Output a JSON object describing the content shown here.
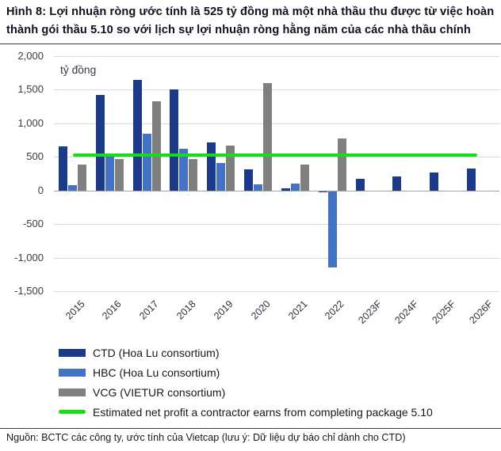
{
  "figure": {
    "title": "Hình 8: Lợi nhuận ròng ước tính là 525 tỷ đồng mà một nhà thầu thu được từ việc hoàn thành gói thầu 5.10 so với lịch sự lợi nhuận ròng hằng năm của các nhà thầu chính",
    "source_note": "Nguồn: BCTC các công ty, ước tính của Vietcap (lưu ý: Dữ liệu dự báo chỉ dành cho CTD)"
  },
  "chart_data": {
    "type": "bar",
    "unit_label": "tỷ đồng",
    "categories": [
      "2015",
      "2016",
      "2017",
      "2018",
      "2019",
      "2020",
      "2021",
      "2022",
      "2023F",
      "2024F",
      "2025F",
      "2026F"
    ],
    "series": [
      {
        "name": "CTD (Hoa Lu consortium)",
        "color": "#1b3a8a",
        "values": [
          660,
          1420,
          1650,
          1510,
          710,
          320,
          35,
          -20,
          170,
          210,
          270,
          330
        ]
      },
      {
        "name": "HBC (Hoa Lu consortium)",
        "color": "#4472c4",
        "values": [
          80,
          550,
          850,
          620,
          405,
          90,
          100,
          -1140,
          null,
          null,
          null,
          null
        ]
      },
      {
        "name": "VCG (VIETUR consortium)",
        "color": "#7f7f7f",
        "values": [
          390,
          470,
          1330,
          470,
          670,
          1600,
          385,
          780,
          null,
          null,
          null,
          null
        ]
      }
    ],
    "reference_line": {
      "label": "Estimated net profit a contractor earns from completing package 5.10",
      "value": 525,
      "color": "#17dd17"
    },
    "ylim": [
      -1500,
      2000
    ],
    "ytick_interval": 500,
    "ytick_labels": [
      "2,000",
      "1,500",
      "1,000",
      "500",
      "0",
      "-500",
      "-1,000",
      "-1,500"
    ],
    "grid": "horizontal",
    "legend_position": "bottom-left"
  }
}
